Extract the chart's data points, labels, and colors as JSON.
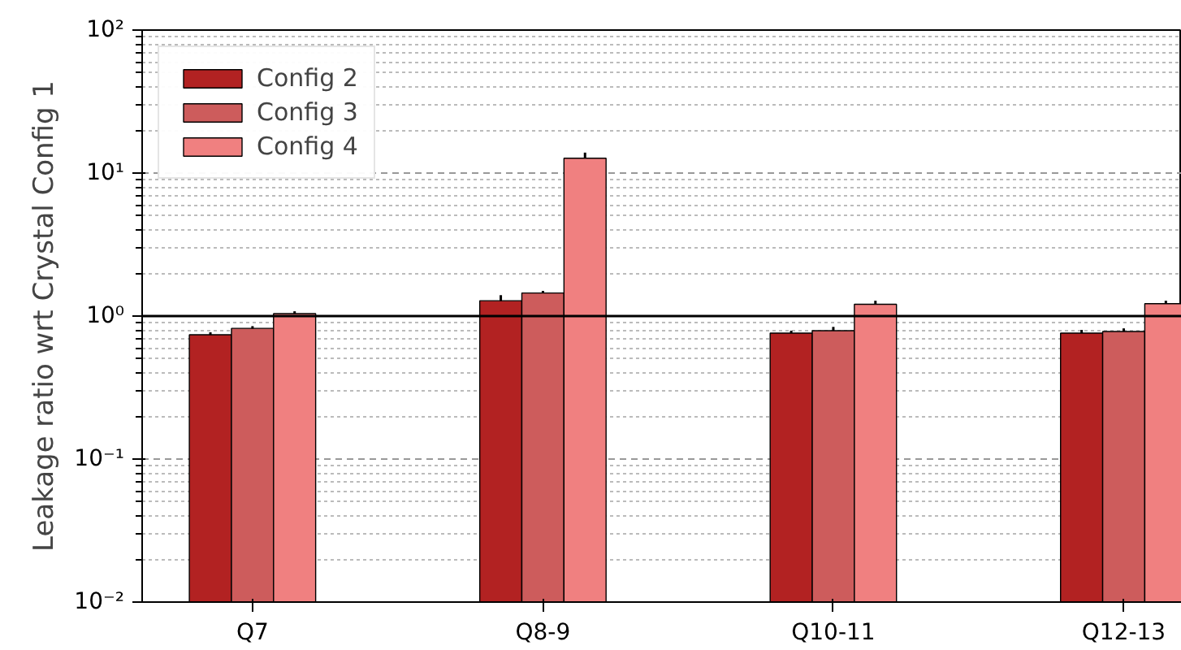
{
  "chart_data": {
    "type": "bar",
    "ylabel": "Leakage ratio wrt Crystal Config 1",
    "categories": [
      "Q7",
      "Q8-9",
      "Q10-11",
      "Q12-13"
    ],
    "series": [
      {
        "name": "Config 2",
        "color": "#b22222",
        "values": [
          0.74,
          1.28,
          0.76,
          0.76
        ],
        "errors": [
          0.03,
          0.12,
          0.03,
          0.04
        ]
      },
      {
        "name": "Config 3",
        "color": "#cd5c5c",
        "values": [
          0.82,
          1.45,
          0.79,
          0.78
        ],
        "errors": [
          0.03,
          0.05,
          0.05,
          0.04
        ]
      },
      {
        "name": "Config 4",
        "color": "#f08080",
        "values": [
          1.04,
          12.7,
          1.21,
          1.22
        ],
        "errors": [
          0.04,
          1.2,
          0.07,
          0.06
        ]
      }
    ],
    "log": true,
    "ylim": [
      0.01,
      100
    ],
    "yticks": [
      {
        "value": 0.01,
        "label": "10⁻²"
      },
      {
        "value": 0.1,
        "label": "10⁻¹"
      },
      {
        "value": 1,
        "label": "10⁰"
      },
      {
        "value": 10,
        "label": "10¹"
      },
      {
        "value": 100,
        "label": "10²"
      }
    ],
    "ref_lines": [
      {
        "axis": "y",
        "value": 1,
        "color": "#000000"
      }
    ],
    "grid": "y",
    "legend": "top left"
  }
}
